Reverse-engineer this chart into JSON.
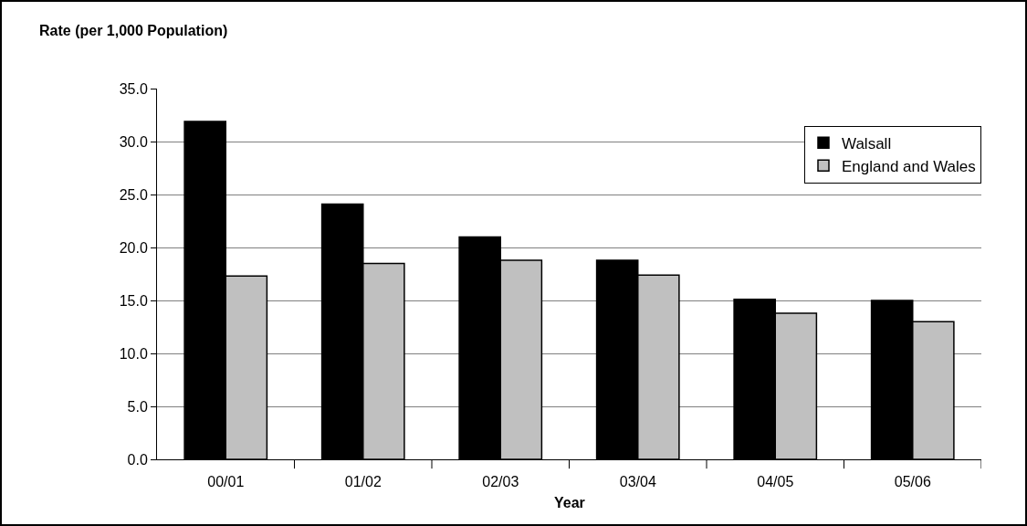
{
  "chart_data": {
    "type": "bar",
    "ylabel": "Rate (per 1,000 Population)",
    "xlabel": "Year",
    "categories": [
      "00/01",
      "01/02",
      "02/03",
      "03/04",
      "04/05",
      "05/06"
    ],
    "series": [
      {
        "name": "Walsall",
        "color": "#000000",
        "values": [
          31.9,
          24.1,
          21.0,
          18.8,
          15.1,
          15.0
        ]
      },
      {
        "name": "England and Wales",
        "color": "#c0c0c0",
        "values": [
          17.3,
          18.5,
          18.8,
          17.4,
          13.8,
          13.0
        ]
      }
    ],
    "ylim": [
      0,
      35
    ],
    "yticks": [
      {
        "value": 0,
        "label": "0.0"
      },
      {
        "value": 5,
        "label": "5.0"
      },
      {
        "value": 10,
        "label": "10.0"
      },
      {
        "value": 15,
        "label": "15.0"
      },
      {
        "value": 20,
        "label": "20.0"
      },
      {
        "value": 25,
        "label": "25.0"
      },
      {
        "value": 30,
        "label": "30.0"
      },
      {
        "value": 35,
        "label": "35.0"
      }
    ],
    "grid": "y",
    "legend": "top right"
  }
}
